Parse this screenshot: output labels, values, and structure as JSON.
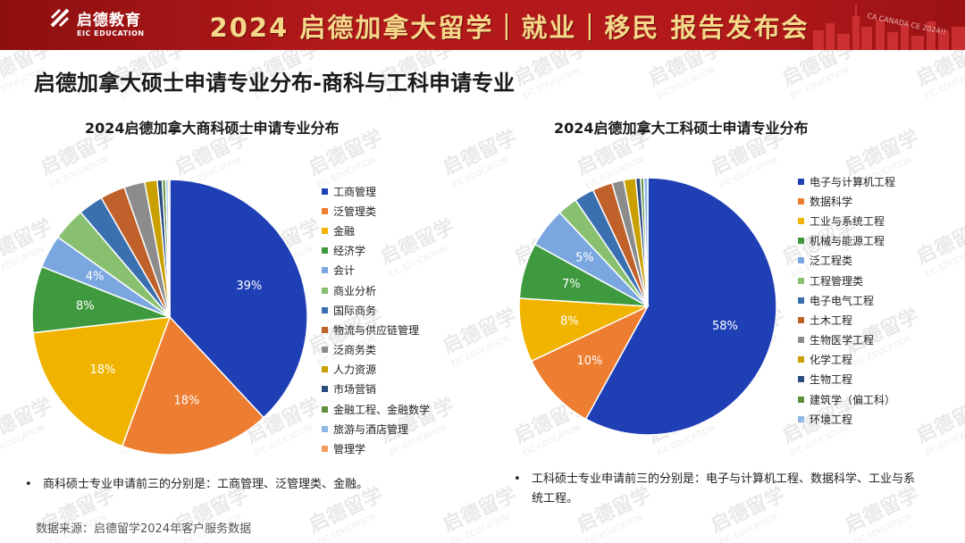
{
  "banner": {
    "brand_cn": "启德教育",
    "brand_en": "EIC EDUCATION",
    "title": "2024 启德加拿大留学｜就业｜移民 报告发布会",
    "skyline_text": "CA CANADA CE 2024!!"
  },
  "page_title": "启德加拿大硕士申请专业分布-商科与工科申请专业",
  "watermark_text": "启德留学",
  "watermark_en": "EIC EDUCATION",
  "chart_data": [
    {
      "type": "pie",
      "title": "2024启德加拿大商科硕士申请专业分布",
      "categories": [
        "工商管理",
        "泛管理类",
        "金融",
        "经济学",
        "会计",
        "商业分析",
        "国际商务",
        "物流与供应链管理",
        "泛商务类",
        "人力资源",
        "市场营销",
        "金融工程、金融数学",
        "旅游与酒店管理",
        "管理学"
      ],
      "values": [
        39,
        18,
        18,
        8,
        4,
        4,
        3,
        3,
        2.5,
        1.5,
        0.6,
        0.4,
        0.3,
        0.2
      ],
      "data_labels": [
        "39%",
        "18%",
        "18%",
        "8%",
        "4%",
        "",
        "",
        "",
        "",
        "",
        "",
        "",
        "",
        ""
      ],
      "colors": [
        "#1f3fb5",
        "#ed7d31",
        "#f0b400",
        "#3f9a3f",
        "#7ba7e0",
        "#88c070",
        "#3a6fb0",
        "#c0602a",
        "#8c8c8c",
        "#c9a000",
        "#2b4c7e",
        "#5e8f3b",
        "#8fb8e6",
        "#f39b5a"
      ],
      "legend_position": "right"
    },
    {
      "type": "pie",
      "title": "2024启德加拿大工科硕士申请专业分布",
      "categories": [
        "电子与计算机工程",
        "数据科学",
        "工业与系统工程",
        "机械与能源工程",
        "泛工程类",
        "工程管理类",
        "电子电气工程",
        "土木工程",
        "生物医学工程",
        "化学工程",
        "生物工程",
        "建筑学（偏工科）",
        "环境工程"
      ],
      "values": [
        58,
        10,
        8,
        7,
        5,
        2.5,
        2.5,
        2.5,
        1.5,
        1.5,
        0.6,
        0.4,
        0.5
      ],
      "data_labels": [
        "58%",
        "10%",
        "8%",
        "7%",
        "5%",
        "",
        "",
        "",
        "",
        "",
        "",
        "",
        ""
      ],
      "colors": [
        "#1f3fb5",
        "#ed7d31",
        "#f0b400",
        "#3f9a3f",
        "#7ba7e0",
        "#88c070",
        "#3a6fb0",
        "#c0602a",
        "#8c8c8c",
        "#c9a000",
        "#2b4c7e",
        "#5e8f3b",
        "#8fb8e6"
      ],
      "legend_position": "right"
    }
  ],
  "notes": {
    "bullet": "•",
    "biz": "商科硕士专业申请前三的分别是：工商管理、泛管理类、金融。",
    "eng": "工科硕士专业申请前三的分别是：电子与计算机工程、数据科学、工业与系统工程。"
  },
  "source": "数据来源：启德留学2024年客户服务数据"
}
